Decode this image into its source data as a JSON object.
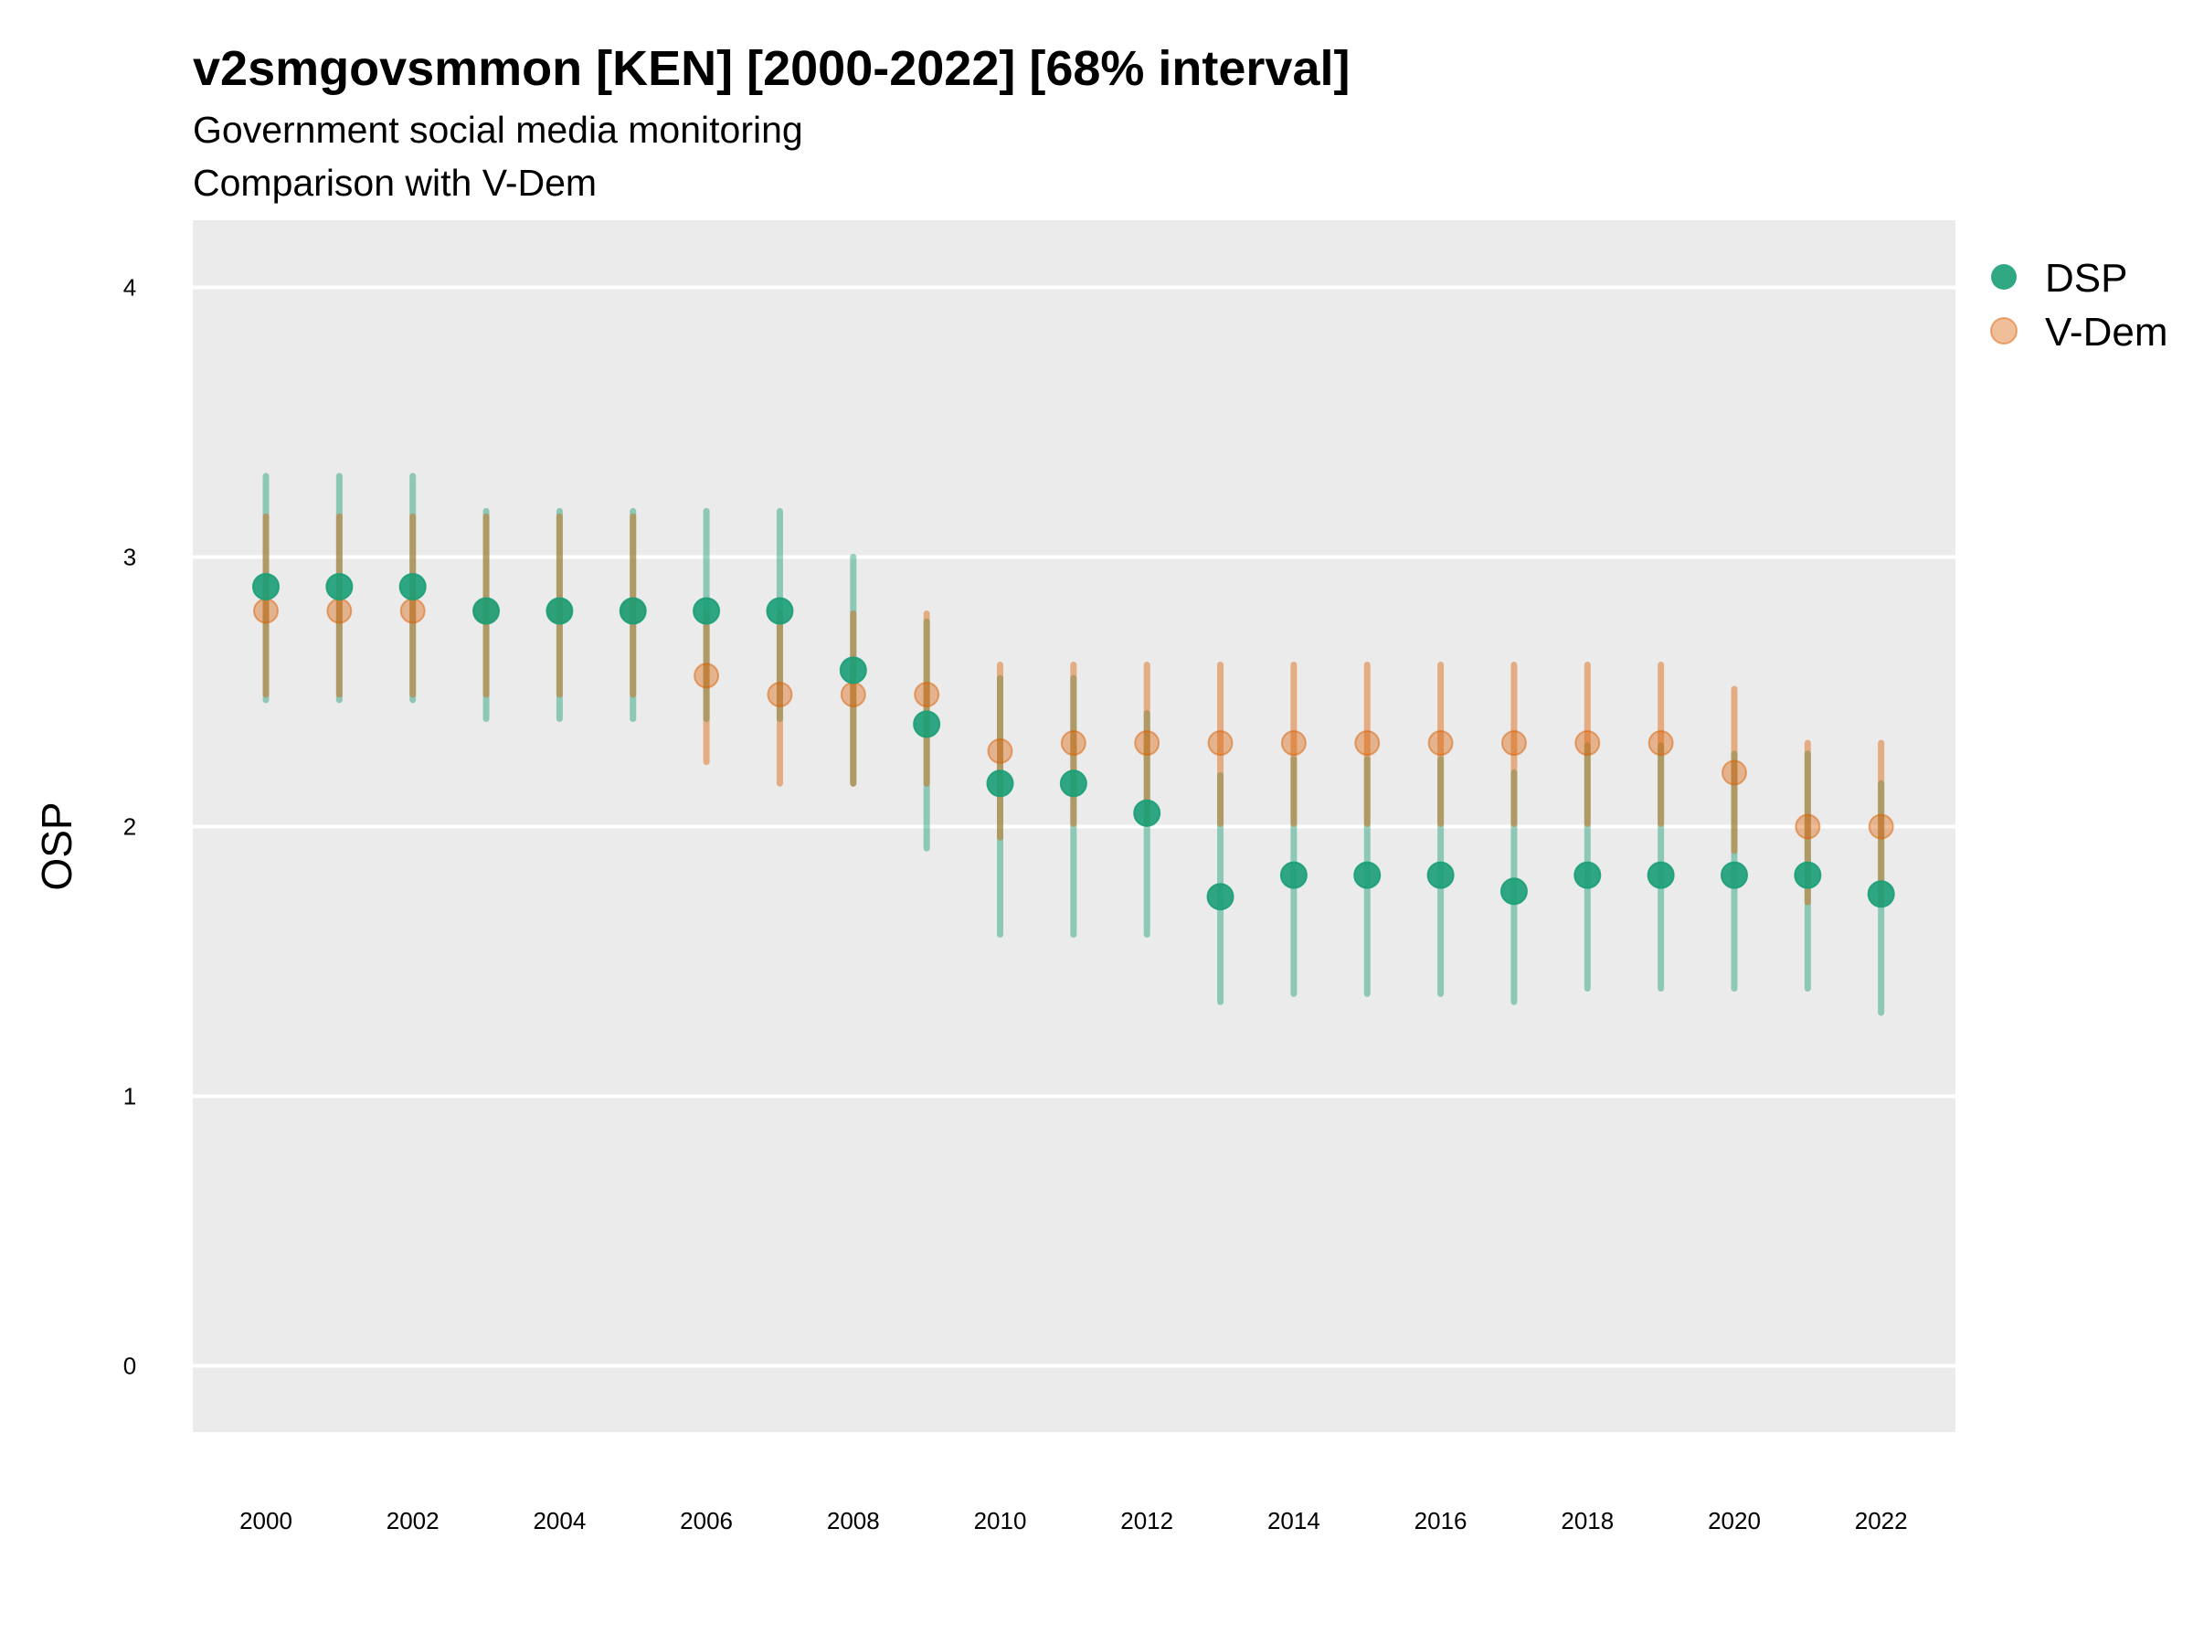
{
  "chart_data": {
    "type": "scatter",
    "title": "v2smgovsmmon [KEN] [2000-2022] [68% interval]",
    "subtitle": "Government social media monitoring",
    "subtitle2": "Comparison with V-Dem",
    "xlabel": "",
    "ylabel": "OSP",
    "ylim": [
      -0.25,
      4.25
    ],
    "yticks": [
      "0",
      "1",
      "2",
      "3",
      "4"
    ],
    "xticks": [
      "2000",
      "2002",
      "2004",
      "2006",
      "2008",
      "2010",
      "2012",
      "2014",
      "2016",
      "2018",
      "2020",
      "2022"
    ],
    "x": [
      2000,
      2001,
      2002,
      2003,
      2004,
      2005,
      2006,
      2007,
      2008,
      2009,
      2010,
      2011,
      2012,
      2013,
      2014,
      2015,
      2016,
      2017,
      2018,
      2019,
      2020,
      2021,
      2022
    ],
    "series": [
      {
        "name": "DSP",
        "color": "#1b9e77",
        "values": [
          2.89,
          2.89,
          2.89,
          2.8,
          2.8,
          2.8,
          2.8,
          2.8,
          2.58,
          2.38,
          2.16,
          2.16,
          2.05,
          1.74,
          1.82,
          1.82,
          1.82,
          1.76,
          1.82,
          1.82,
          1.82,
          1.82,
          1.75
        ],
        "lower": [
          2.47,
          2.47,
          2.47,
          2.4,
          2.4,
          2.4,
          2.4,
          2.4,
          2.16,
          1.92,
          1.6,
          1.6,
          1.6,
          1.35,
          1.38,
          1.38,
          1.38,
          1.35,
          1.4,
          1.4,
          1.4,
          1.4,
          1.31
        ],
        "upper": [
          3.3,
          3.3,
          3.3,
          3.17,
          3.17,
          3.17,
          3.17,
          3.17,
          3.0,
          2.76,
          2.55,
          2.55,
          2.42,
          2.19,
          2.25,
          2.25,
          2.25,
          2.2,
          2.3,
          2.3,
          2.27,
          2.27,
          2.16
        ]
      },
      {
        "name": "V-Dem",
        "color": "#d95f02",
        "values": [
          2.8,
          2.8,
          2.8,
          2.8,
          2.8,
          2.8,
          2.56,
          2.49,
          2.49,
          2.49,
          2.28,
          2.31,
          2.31,
          2.31,
          2.31,
          2.31,
          2.31,
          2.31,
          2.31,
          2.31,
          2.2,
          2.0,
          2.0
        ],
        "lower": [
          2.49,
          2.49,
          2.49,
          2.49,
          2.49,
          2.49,
          2.24,
          2.16,
          2.16,
          2.16,
          1.96,
          2.01,
          2.01,
          2.01,
          2.01,
          2.01,
          2.01,
          2.01,
          2.01,
          2.01,
          1.91,
          1.72,
          1.72
        ],
        "upper": [
          3.15,
          3.15,
          3.15,
          3.15,
          3.15,
          3.15,
          2.79,
          2.79,
          2.79,
          2.79,
          2.6,
          2.6,
          2.6,
          2.6,
          2.6,
          2.6,
          2.6,
          2.6,
          2.6,
          2.6,
          2.51,
          2.31,
          2.31
        ]
      }
    ],
    "legend": {
      "position": "right",
      "entries": [
        "DSP",
        "V-Dem"
      ]
    },
    "grid": true,
    "panel_color": "#ebebeb"
  }
}
